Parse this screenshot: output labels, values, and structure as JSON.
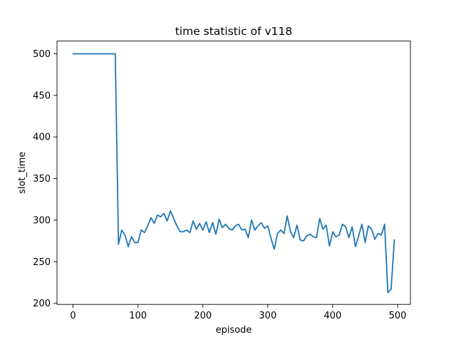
{
  "chart_data": {
    "type": "line",
    "title": "time statistic of v118",
    "xlabel": "episode",
    "ylabel": "slot_time",
    "xlim": [
      -24.75,
      519.75
    ],
    "ylim": [
      198.65,
      515.35
    ],
    "xticks": [
      0,
      100,
      200,
      300,
      400,
      500
    ],
    "yticks": [
      200,
      250,
      300,
      350,
      400,
      450,
      500
    ],
    "grid": false,
    "line_color": "#1f77b4",
    "series": [
      {
        "x": [
          0,
          5,
          10,
          15,
          20,
          25,
          30,
          35,
          40,
          45,
          50,
          55,
          60,
          65,
          70,
          75,
          80,
          85,
          90,
          95,
          100,
          105,
          110,
          115,
          120,
          125,
          130,
          135,
          140,
          145,
          150,
          155,
          160,
          165,
          170,
          175,
          180,
          185,
          190,
          195,
          200,
          205,
          210,
          215,
          220,
          225,
          230,
          235,
          240,
          245,
          250,
          255,
          260,
          265,
          270,
          275,
          280,
          285,
          290,
          295,
          300,
          305,
          310,
          315,
          320,
          325,
          330,
          335,
          340,
          345,
          350,
          355,
          360,
          365,
          370,
          375,
          380,
          385,
          390,
          395,
          400,
          405,
          410,
          415,
          420,
          425,
          430,
          435,
          440,
          445,
          450,
          455,
          460,
          465,
          470,
          475,
          480,
          485,
          490,
          495
        ],
        "values": [
          500,
          500,
          500,
          500,
          500,
          500,
          500,
          500,
          500,
          500,
          500,
          500,
          500,
          500,
          271,
          288,
          282,
          268,
          280,
          273,
          273,
          288,
          285,
          293,
          303,
          296,
          306,
          304,
          308,
          299,
          311,
          302,
          293,
          286,
          286,
          288,
          285,
          299,
          289,
          296,
          288,
          298,
          285,
          297,
          283,
          301,
          291,
          295,
          290,
          288,
          293,
          295,
          288,
          289,
          279,
          300,
          288,
          293,
          297,
          290,
          293,
          278,
          265,
          284,
          288,
          284,
          305,
          286,
          279,
          294,
          276,
          275,
          281,
          283,
          280,
          279,
          302,
          289,
          294,
          269,
          286,
          280,
          282,
          295,
          292,
          279,
          292,
          268,
          281,
          295,
          273,
          293,
          289,
          277,
          284,
          282,
          295,
          213,
          217,
          276
        ]
      }
    ]
  }
}
